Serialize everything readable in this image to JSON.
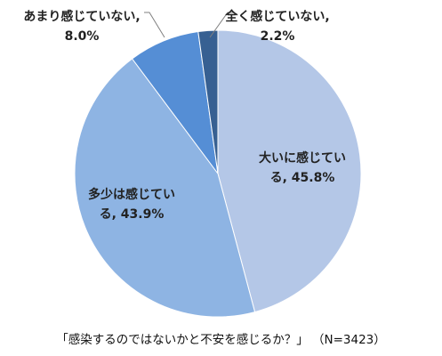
{
  "chart_data": {
    "type": "pie",
    "slices": [
      {
        "name": "大いに感じている",
        "value": 45.8,
        "color": "#b4c7e7",
        "label_lines": [
          "大いに感じてい",
          "る, 45.8%"
        ]
      },
      {
        "name": "多少は感じている",
        "value": 43.9,
        "color": "#8eb4e3",
        "label_lines": [
          "多少は感じてい",
          "る, 43.9%"
        ]
      },
      {
        "name": "あまり感じていない",
        "value": 8.0,
        "color": "#558ed5",
        "label_lines": [
          "あまり感じていない,",
          "8.0%"
        ]
      },
      {
        "name": "全く感じていない",
        "value": 2.2,
        "color": "#376092",
        "label_lines": [
          "全く感じていない,",
          "2.2%"
        ]
      }
    ],
    "title": "「感染するのではないかと不安を感じるか？」",
    "n_label": "（N=3423）"
  }
}
